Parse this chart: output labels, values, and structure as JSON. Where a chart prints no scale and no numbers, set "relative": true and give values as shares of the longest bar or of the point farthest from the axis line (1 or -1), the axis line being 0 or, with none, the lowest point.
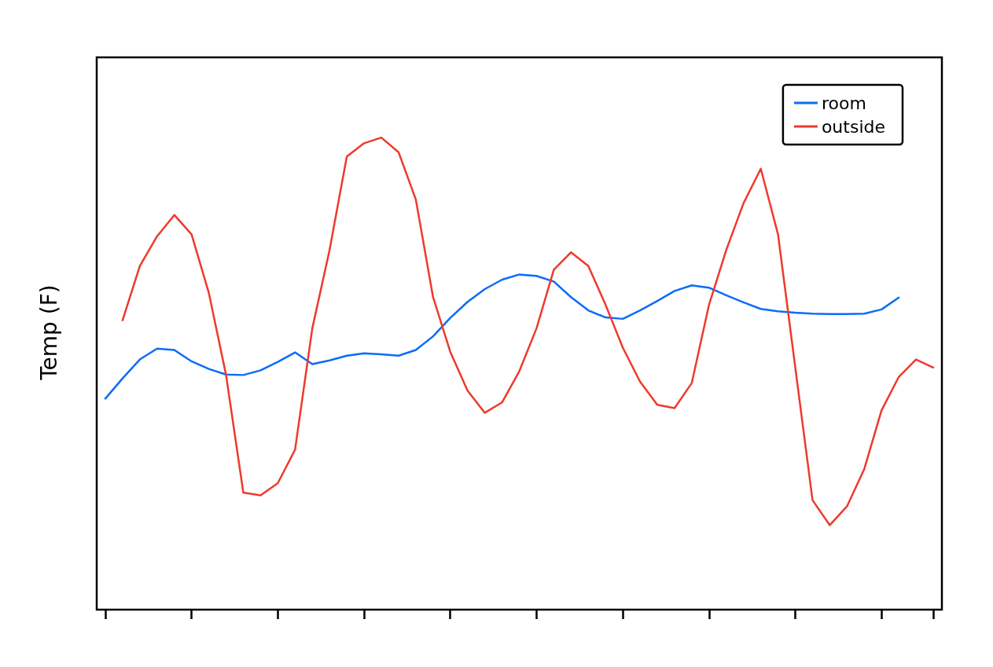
{
  "chart_data": {
    "type": "line",
    "ylabel": "Temp (F)",
    "relative": true,
    "legend": "top right",
    "marker": "none",
    "line_style": "solid",
    "categories": [
      null,
      null,
      null,
      null,
      null,
      null,
      null,
      null,
      null,
      null,
      null,
      null,
      null,
      null,
      null,
      null,
      null,
      null,
      null,
      null,
      null,
      null,
      null,
      null,
      null,
      null,
      null,
      null,
      null,
      null,
      null,
      null,
      null,
      null,
      null,
      null,
      null,
      null,
      null,
      null,
      null,
      null,
      null,
      null,
      null,
      null,
      null,
      null,
      null
    ],
    "series": [
      {
        "name": "room",
        "color": "#0b6cf7",
        "values": [
          0.447,
          0.49,
          0.53,
          0.553,
          0.55,
          0.526,
          0.51,
          0.498,
          0.497,
          0.507,
          0.525,
          0.545,
          0.52,
          0.528,
          0.538,
          0.543,
          0.541,
          0.538,
          0.55,
          0.579,
          0.618,
          0.652,
          0.679,
          0.699,
          0.71,
          0.707,
          0.695,
          0.662,
          0.634,
          0.619,
          0.616,
          0.634,
          0.654,
          0.675,
          0.687,
          0.682,
          0.666,
          0.651,
          0.637,
          0.632,
          0.629,
          0.627,
          0.626,
          0.626,
          0.627,
          0.636,
          0.661,
          null,
          null
        ]
      },
      {
        "name": "outside",
        "color": "#ee3a2c",
        "values": [
          null,
          0.613,
          0.728,
          0.791,
          0.836,
          0.795,
          0.671,
          0.497,
          0.248,
          0.242,
          0.268,
          0.339,
          0.596,
          0.762,
          0.96,
          0.988,
          1,
          0.969,
          0.869,
          0.662,
          0.546,
          0.464,
          0.417,
          0.439,
          0.505,
          0.596,
          0.72,
          0.757,
          0.728,
          0.646,
          0.555,
          0.483,
          0.434,
          0.427,
          0.48,
          0.646,
          0.762,
          0.861,
          0.934,
          0.795,
          0.513,
          0.232,
          0.179,
          0.219,
          0.298,
          0.422,
          0.493,
          0.53,
          0.513
        ]
      }
    ]
  }
}
